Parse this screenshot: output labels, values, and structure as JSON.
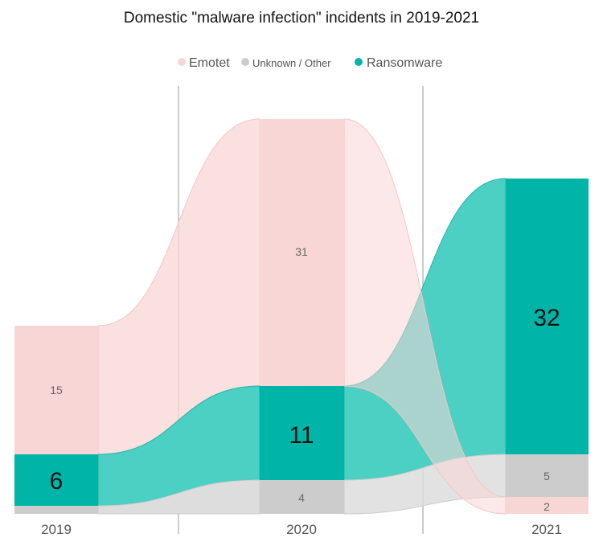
{
  "chart_data": {
    "type": "area",
    "title": "Domestic \"malware infection\" incidents in 2019-2021",
    "categories": [
      "2019",
      "2020",
      "2021"
    ],
    "series": [
      {
        "name": "Emotet",
        "values": [
          15,
          31,
          2
        ],
        "color": "#f9d6d6"
      },
      {
        "name": "Unknown / Other",
        "values": [
          1,
          4,
          5
        ],
        "color": "#cccccc"
      },
      {
        "name": "Ransomware",
        "values": [
          6,
          11,
          32
        ],
        "color": "#00b5a8"
      }
    ],
    "value_labels": [
      "15",
      "6",
      "31",
      "11",
      "4",
      "32",
      "5",
      "2"
    ],
    "legend": "top-center",
    "grid": false
  }
}
